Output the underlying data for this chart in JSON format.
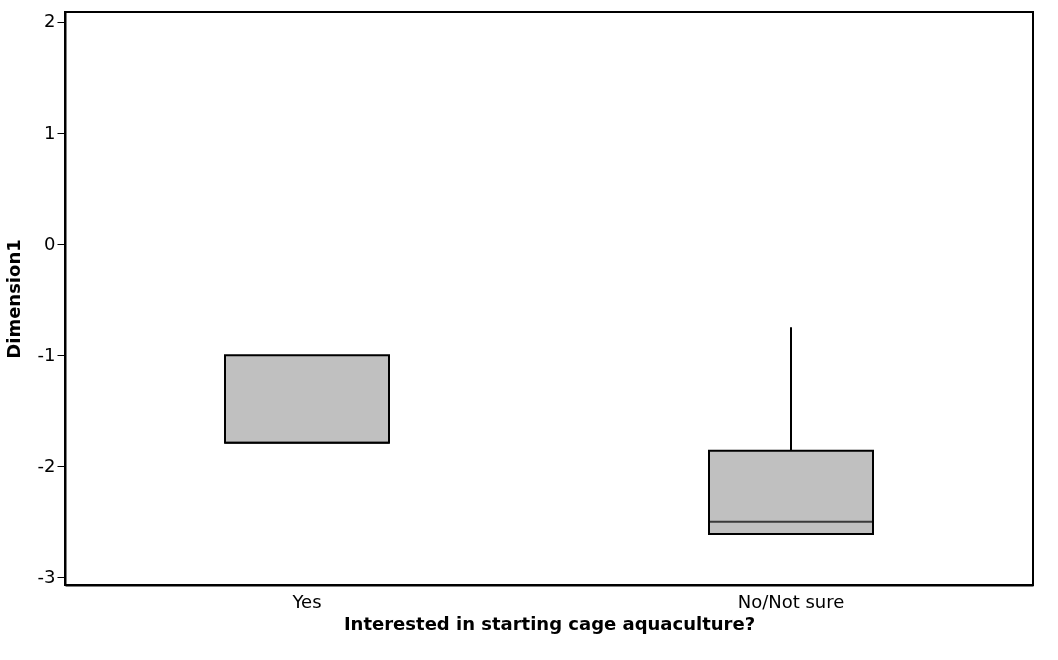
{
  "chart_data": {
    "type": "box",
    "xlabel": "Interested in starting cage aquaculture?",
    "ylabel": "Dimension1",
    "categories": [
      "Yes",
      "No/Not sure"
    ],
    "boxes": [
      {
        "low": -1.79,
        "q1": -1.79,
        "median": -1.79,
        "q3": -1.0,
        "high": -1.0
      },
      {
        "low": -2.61,
        "q1": -2.61,
        "median": -2.5,
        "q3": -1.86,
        "high": -0.75
      }
    ],
    "color": "#c0c0c0",
    "ylim": [
      -3.07,
      2.09
    ],
    "yticks": [
      -3,
      -2,
      -1,
      0,
      1,
      2
    ],
    "grid": false
  }
}
